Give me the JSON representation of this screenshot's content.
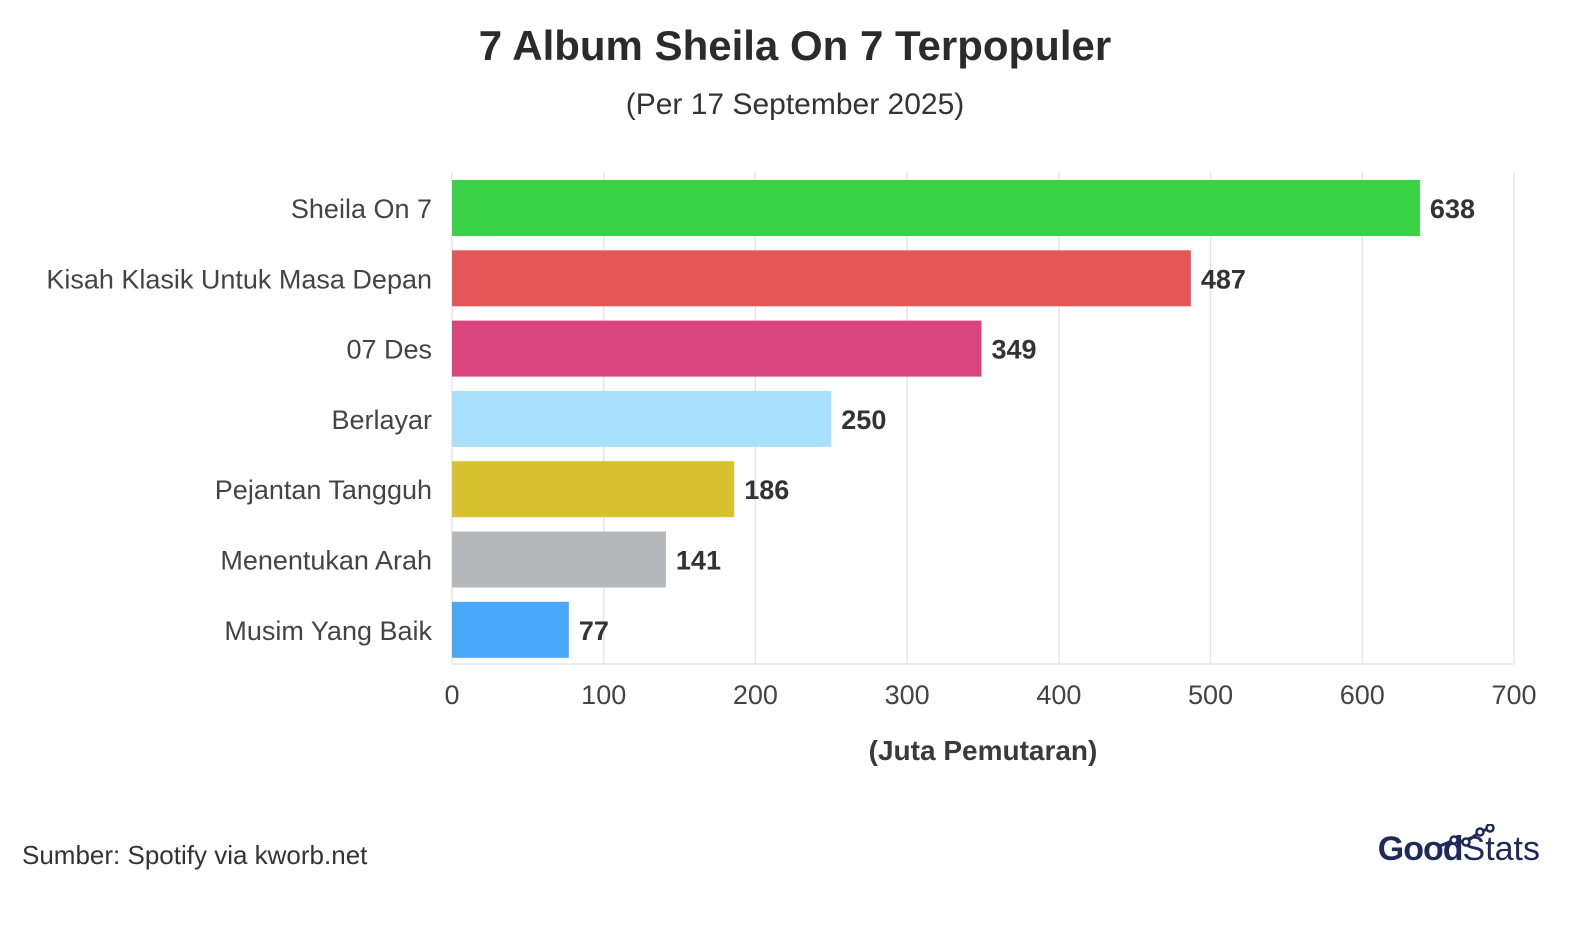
{
  "title": "7 Album Sheila On 7 Terpopuler",
  "subtitle": "(Per 17 September 2025)",
  "source": "Sumber: Spotify via kworb.net",
  "logo": {
    "part1": "Good",
    "part2": "Stats"
  },
  "chart_data": {
    "type": "bar",
    "orientation": "horizontal",
    "categories": [
      "Sheila On 7",
      "Kisah Klasik Untuk Masa Depan",
      "07 Des",
      "Berlayar",
      "Pejantan Tangguh",
      "Menentukan Arah",
      "Musim Yang Baik"
    ],
    "values": [
      638,
      487,
      349,
      250,
      186,
      141,
      77
    ],
    "colors": [
      "#3bd146",
      "#e4565a",
      "#d9457c",
      "#a9e0fc",
      "#d7c232",
      "#b6b9bc",
      "#4aa8fb"
    ],
    "xlabel": "(Juta Pemutaran)",
    "xlim": [
      0,
      700
    ],
    "xticks": [
      0,
      100,
      200,
      300,
      400,
      500,
      600,
      700
    ],
    "grid": true
  }
}
